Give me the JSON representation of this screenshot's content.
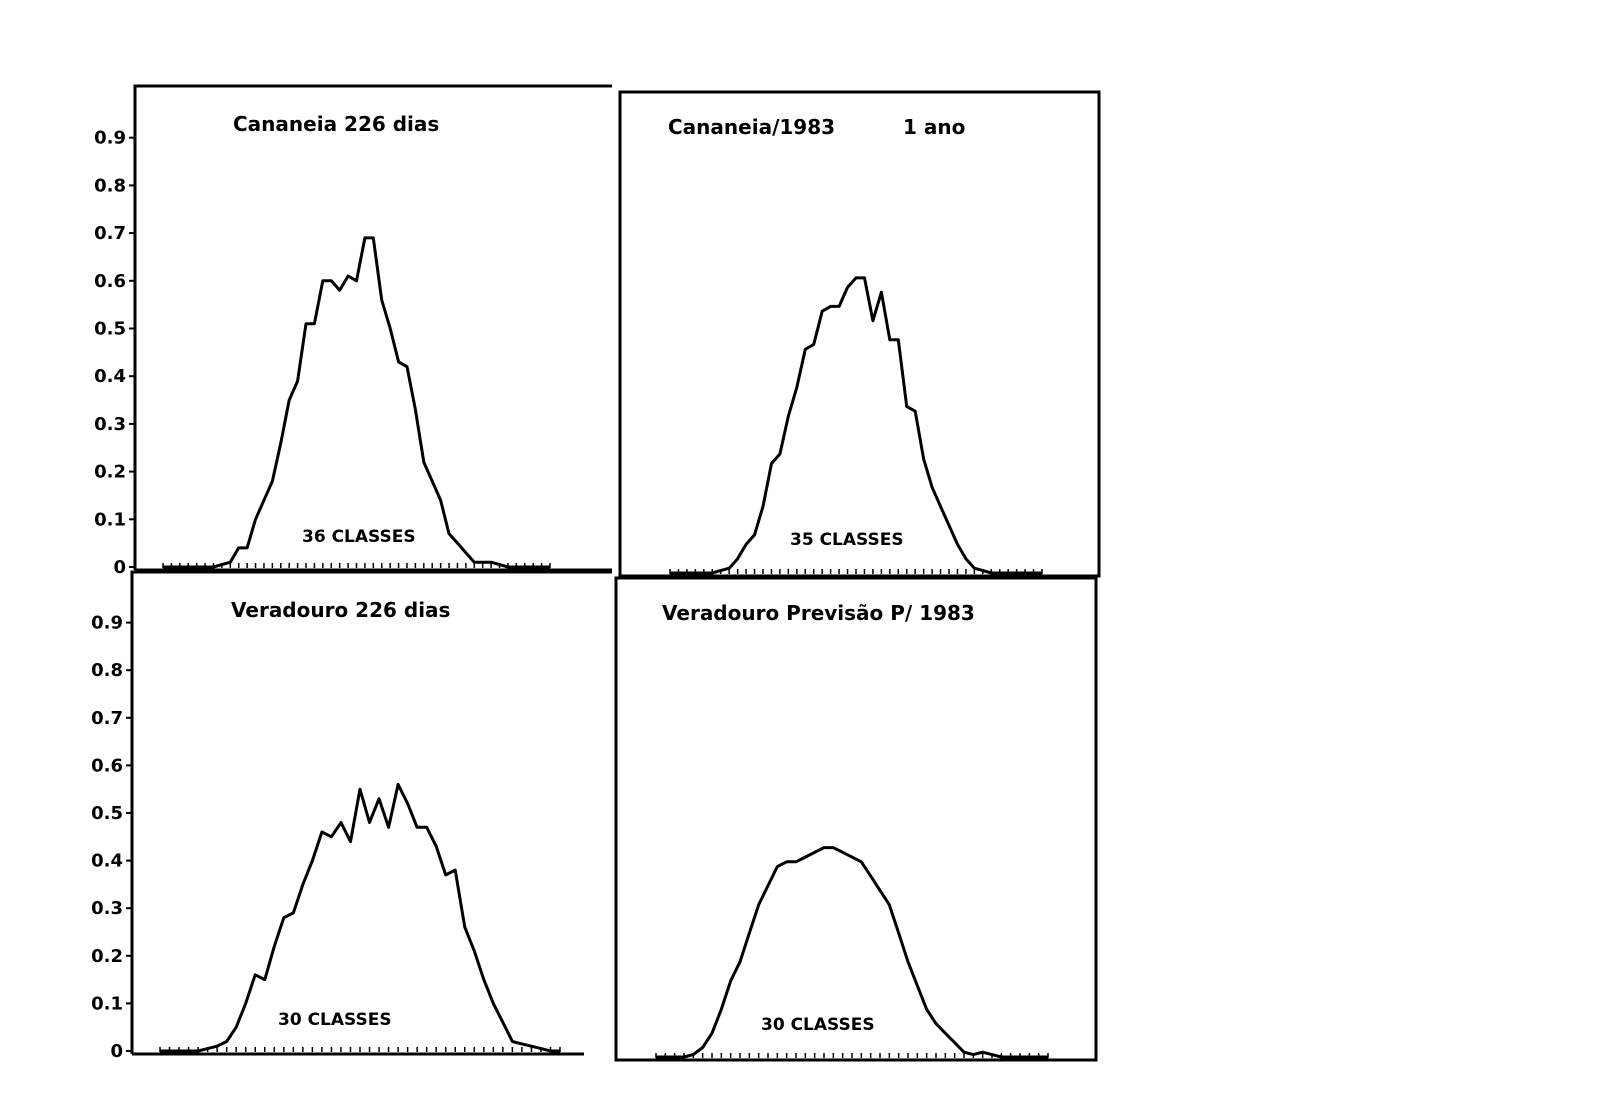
{
  "chart_data": [
    {
      "type": "line",
      "title": "Cananeia 226 dias",
      "annotation": "36 CLASSES",
      "ylim": [
        0,
        1.0
      ],
      "y_ticks": [
        "0",
        "0.1",
        "0.2",
        "0.3",
        "0.4",
        "0.5",
        "0.6",
        "0.7",
        "0.8",
        "0.9"
      ],
      "xlim": [
        0,
        46
      ],
      "x": [
        0,
        1,
        2,
        3,
        4,
        5,
        6,
        7,
        8,
        9,
        10,
        11,
        12,
        13,
        14,
        15,
        16,
        17,
        18,
        19,
        20,
        21,
        22,
        23,
        24,
        25,
        26,
        27,
        28,
        29,
        30,
        31,
        32,
        33,
        34,
        35,
        36,
        37,
        38,
        39,
        40,
        41,
        42,
        43,
        44,
        45,
        46
      ],
      "values": [
        0,
        0,
        0,
        0,
        0,
        0,
        0,
        0.005,
        0.01,
        0.04,
        0.04,
        0.1,
        0.14,
        0.18,
        0.26,
        0.35,
        0.39,
        0.51,
        0.51,
        0.6,
        0.6,
        0.58,
        0.61,
        0.6,
        0.69,
        0.69,
        0.56,
        0.5,
        0.43,
        0.42,
        0.33,
        0.22,
        0.18,
        0.14,
        0.07,
        0.05,
        0.03,
        0.01,
        0.01,
        0.01,
        0.005,
        0,
        0,
        0,
        0,
        0,
        0
      ]
    },
    {
      "type": "line",
      "title": "Cananeia/1983",
      "title_note": "1 ano",
      "annotation": "35 CLASSES",
      "ylim": [
        0,
        1.0
      ],
      "xlim": [
        0,
        44
      ],
      "x": [
        0,
        1,
        2,
        3,
        4,
        5,
        6,
        7,
        8,
        9,
        10,
        11,
        12,
        13,
        14,
        15,
        16,
        17,
        18,
        19,
        20,
        21,
        22,
        23,
        24,
        25,
        26,
        27,
        28,
        29,
        30,
        31,
        32,
        33,
        34,
        35,
        36,
        37,
        38,
        39,
        40,
        41,
        42,
        43,
        44
      ],
      "values": [
        0,
        0,
        0,
        0,
        0,
        0,
        0.005,
        0.01,
        0.03,
        0.06,
        0.08,
        0.14,
        0.23,
        0.25,
        0.33,
        0.39,
        0.47,
        0.48,
        0.55,
        0.56,
        0.56,
        0.6,
        0.62,
        0.62,
        0.53,
        0.59,
        0.49,
        0.49,
        0.35,
        0.34,
        0.24,
        0.18,
        0.14,
        0.1,
        0.06,
        0.03,
        0.01,
        0.005,
        0,
        0,
        0,
        0,
        0,
        0,
        0
      ]
    },
    {
      "type": "line",
      "title": "Veradouro 226 dias",
      "annotation": "30 CLASSES",
      "ylim": [
        0,
        1.0
      ],
      "y_ticks": [
        "0",
        "0.1",
        "0.2",
        "0.3",
        "0.4",
        "0.5",
        "0.6",
        "0.7",
        "0.8",
        "0.9"
      ],
      "xlim": [
        0,
        42
      ],
      "x": [
        0,
        1,
        2,
        3,
        4,
        5,
        6,
        7,
        8,
        9,
        10,
        11,
        12,
        13,
        14,
        15,
        16,
        17,
        18,
        19,
        20,
        21,
        22,
        23,
        24,
        25,
        26,
        27,
        28,
        29,
        30,
        31,
        32,
        33,
        34,
        35,
        36,
        37,
        38,
        39,
        40,
        41,
        42
      ],
      "values": [
        0,
        0,
        0,
        0,
        0,
        0.005,
        0.01,
        0.02,
        0.05,
        0.1,
        0.16,
        0.15,
        0.22,
        0.28,
        0.29,
        0.35,
        0.4,
        0.46,
        0.45,
        0.48,
        0.44,
        0.55,
        0.48,
        0.53,
        0.47,
        0.56,
        0.52,
        0.47,
        0.47,
        0.43,
        0.37,
        0.38,
        0.26,
        0.21,
        0.15,
        0.1,
        0.06,
        0.02,
        0.015,
        0.01,
        0.005,
        0,
        0
      ]
    },
    {
      "type": "line",
      "title": "Veradouro Previsão P/ 1983",
      "annotation": "30 CLASSES",
      "ylim": [
        0,
        1.0
      ],
      "xlim": [
        0,
        42
      ],
      "x": [
        0,
        1,
        2,
        3,
        4,
        5,
        6,
        7,
        8,
        9,
        10,
        11,
        12,
        13,
        14,
        15,
        16,
        17,
        18,
        19,
        20,
        21,
        22,
        23,
        24,
        25,
        26,
        27,
        28,
        29,
        30,
        31,
        32,
        33,
        34,
        35,
        36,
        37,
        38,
        39,
        40,
        41,
        42
      ],
      "values": [
        0,
        0,
        0,
        0,
        0.005,
        0.02,
        0.05,
        0.1,
        0.16,
        0.2,
        0.26,
        0.32,
        0.36,
        0.4,
        0.41,
        0.41,
        0.42,
        0.43,
        0.44,
        0.44,
        0.43,
        0.42,
        0.41,
        0.38,
        0.35,
        0.32,
        0.26,
        0.2,
        0.15,
        0.1,
        0.07,
        0.05,
        0.03,
        0.01,
        0.005,
        0.01,
        0.005,
        0,
        0,
        0,
        0,
        0,
        0
      ]
    }
  ]
}
